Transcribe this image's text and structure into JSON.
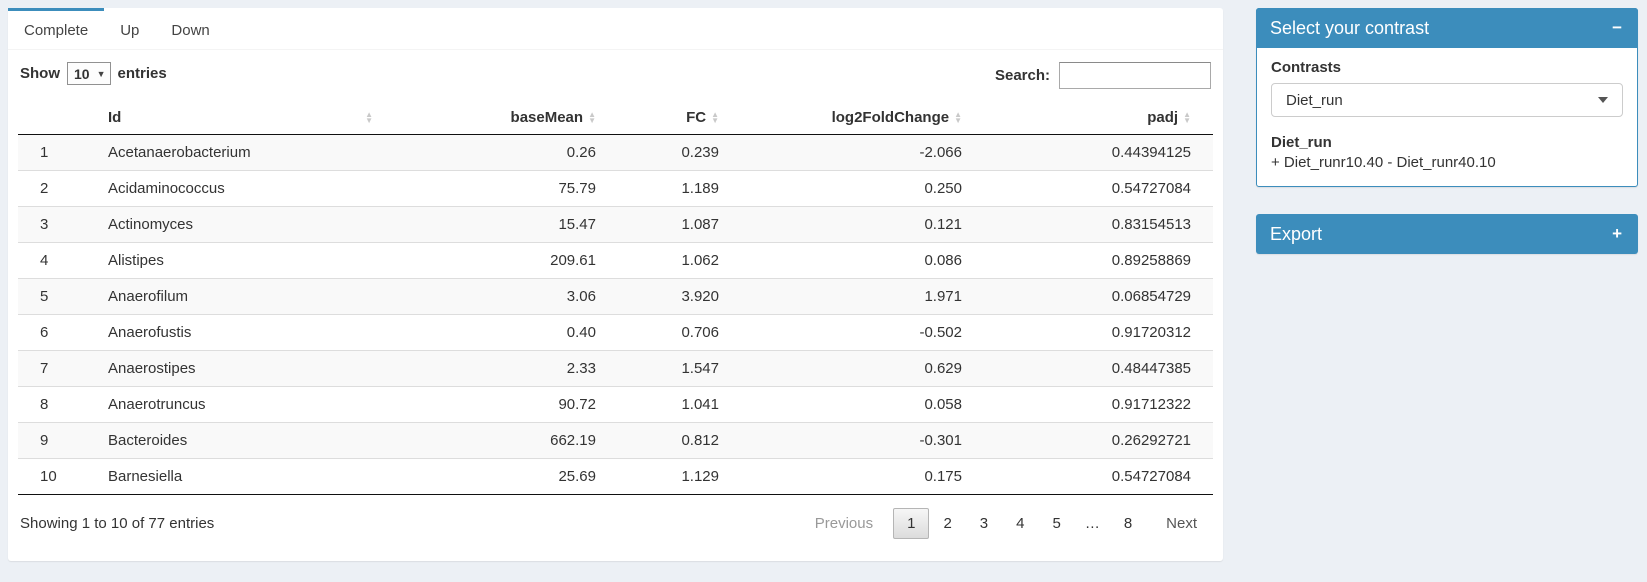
{
  "tabs": [
    {
      "label": "Complete",
      "active": true
    },
    {
      "label": "Up",
      "active": false
    },
    {
      "label": "Down",
      "active": false
    }
  ],
  "table_controls": {
    "show_label": "Show",
    "page_length": "10",
    "entries_label": "entries",
    "search_label": "Search:",
    "search_value": ""
  },
  "table": {
    "columns": [
      "",
      "Id",
      "baseMean",
      "FC",
      "log2FoldChange",
      "padj"
    ],
    "rows": [
      {
        "index": "1",
        "id": "Acetanaerobacterium",
        "baseMean": "0.26",
        "fc": "0.239",
        "log2FoldChange": "-2.066",
        "padj": "0.44394125"
      },
      {
        "index": "2",
        "id": "Acidaminococcus",
        "baseMean": "75.79",
        "fc": "1.189",
        "log2FoldChange": "0.250",
        "padj": "0.54727084"
      },
      {
        "index": "3",
        "id": "Actinomyces",
        "baseMean": "15.47",
        "fc": "1.087",
        "log2FoldChange": "0.121",
        "padj": "0.83154513"
      },
      {
        "index": "4",
        "id": "Alistipes",
        "baseMean": "209.61",
        "fc": "1.062",
        "log2FoldChange": "0.086",
        "padj": "0.89258869"
      },
      {
        "index": "5",
        "id": "Anaerofilum",
        "baseMean": "3.06",
        "fc": "3.920",
        "log2FoldChange": "1.971",
        "padj": "0.06854729"
      },
      {
        "index": "6",
        "id": "Anaerofustis",
        "baseMean": "0.40",
        "fc": "0.706",
        "log2FoldChange": "-0.502",
        "padj": "0.91720312"
      },
      {
        "index": "7",
        "id": "Anaerostipes",
        "baseMean": "2.33",
        "fc": "1.547",
        "log2FoldChange": "0.629",
        "padj": "0.48447385"
      },
      {
        "index": "8",
        "id": "Anaerotruncus",
        "baseMean": "90.72",
        "fc": "1.041",
        "log2FoldChange": "0.058",
        "padj": "0.91712322"
      },
      {
        "index": "9",
        "id": "Bacteroides",
        "baseMean": "662.19",
        "fc": "0.812",
        "log2FoldChange": "-0.301",
        "padj": "0.26292721"
      },
      {
        "index": "10",
        "id": "Barnesiella",
        "baseMean": "25.69",
        "fc": "1.129",
        "log2FoldChange": "0.175",
        "padj": "0.54727084"
      }
    ]
  },
  "footer": {
    "info": "Showing 1 to 10 of 77 entries",
    "pagination": {
      "previous": "Previous",
      "pages": [
        "1",
        "2",
        "3",
        "4",
        "5",
        "…",
        "8"
      ],
      "current": "1",
      "next": "Next"
    }
  },
  "contrast_box": {
    "title": "Select your contrast",
    "collapse_icon": "−",
    "contrasts_label": "Contrasts",
    "selected_contrast": "Diet_run",
    "contrast_name": "Diet_run",
    "contrast_formula": "+ Diet_runr10.40 - Diet_runr40.10"
  },
  "export_box": {
    "title": "Export",
    "expand_icon": "+"
  },
  "colors": {
    "primary": "#3c8dbc",
    "page_bg": "#ecf0f5",
    "stripe": "#f9f9f9"
  }
}
